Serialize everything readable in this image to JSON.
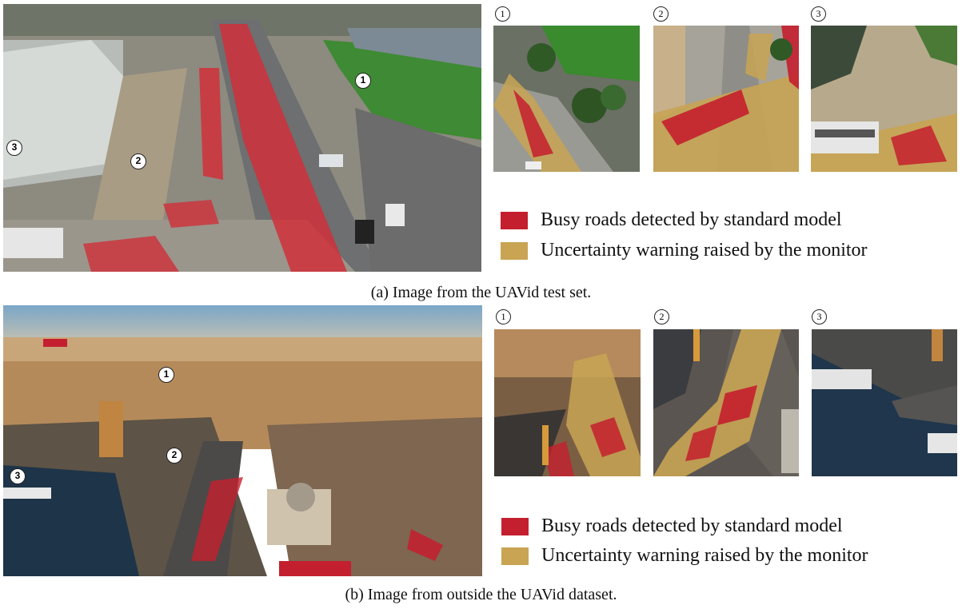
{
  "colors": {
    "busy": "#c41f2e",
    "uncertain": "#c8a453"
  },
  "panel_a": {
    "caption": "(a) Image from the UAVid test set.",
    "markers": [
      "1",
      "2",
      "3"
    ],
    "crop_labels": [
      "1",
      "2",
      "3"
    ],
    "legend": [
      {
        "swatch_color": "#c41f2e",
        "label": "Busy roads detected by standard model"
      },
      {
        "swatch_color": "#c8a453",
        "label": "Uncertainty warning raised by the monitor"
      }
    ]
  },
  "panel_b": {
    "caption": "(b) Image from outside the UAVid dataset.",
    "markers": [
      "1",
      "2",
      "3"
    ],
    "crop_labels": [
      "1",
      "2",
      "3"
    ],
    "legend": [
      {
        "swatch_color": "#c41f2e",
        "label": "Busy roads detected by standard model"
      },
      {
        "swatch_color": "#c8a453",
        "label": "Uncertainty warning raised by the monitor"
      }
    ]
  }
}
